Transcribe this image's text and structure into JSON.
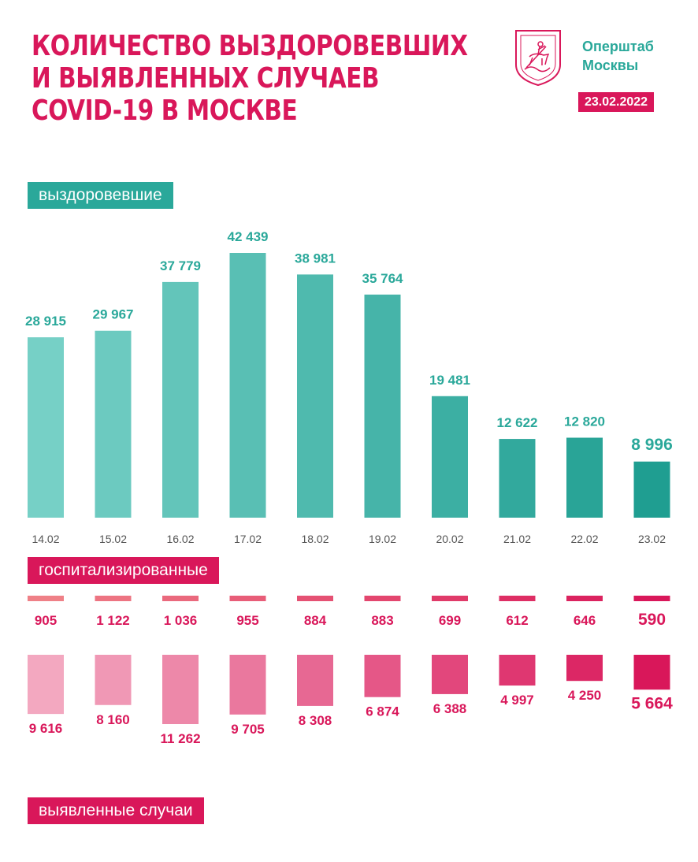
{
  "header": {
    "title_lines": [
      "КОЛИЧЕСТВО ВЫЗДОРОВЕВШИХ",
      "И ВЫЯВЛЕННЫХ СЛУЧАЕВ",
      "COVID-19 В МОСКВЕ"
    ],
    "org_lines": [
      "Оперштаб",
      "Москвы"
    ],
    "date": "23.02.2022",
    "emblem_icon": "moscow-coat-of-arms-icon"
  },
  "labels": {
    "recovered": "выздоровевшие",
    "hospitalized": "госпитализированные",
    "cases": "выявленные случаи"
  },
  "colors": {
    "accent_pink": "#d9175a",
    "accent_teal": "#2aa89a",
    "tick_text": "#555555"
  },
  "chart_data": [
    {
      "type": "bar",
      "name": "выздоровевшие",
      "categories": [
        "14.02",
        "15.02",
        "16.02",
        "17.02",
        "18.02",
        "19.02",
        "20.02",
        "21.02",
        "22.02",
        "23.02"
      ],
      "values": [
        28915,
        29967,
        37779,
        42439,
        38981,
        35764,
        19481,
        12622,
        12820,
        8996
      ],
      "value_labels": [
        "28 915",
        "29 967",
        "37 779",
        "42 439",
        "38 981",
        "35 764",
        "19 481",
        "12 622",
        "12 820",
        "8 996"
      ],
      "ylim": [
        0,
        42439
      ],
      "grid": false
    },
    {
      "type": "bar",
      "name": "госпитализированные",
      "categories": [
        "14.02",
        "15.02",
        "16.02",
        "17.02",
        "18.02",
        "19.02",
        "20.02",
        "21.02",
        "22.02",
        "23.02"
      ],
      "values": [
        905,
        1122,
        1036,
        955,
        884,
        883,
        699,
        612,
        646,
        590
      ],
      "value_labels": [
        "905",
        "1 122",
        "1 036",
        "955",
        "884",
        "883",
        "699",
        "612",
        "646",
        "590"
      ],
      "grid": false
    },
    {
      "type": "bar",
      "name": "выявленные случаи",
      "categories": [
        "14.02",
        "15.02",
        "16.02",
        "17.02",
        "18.02",
        "19.02",
        "20.02",
        "21.02",
        "22.02",
        "23.02"
      ],
      "values": [
        9616,
        8160,
        11262,
        9705,
        8308,
        6874,
        6388,
        4997,
        4250,
        5664
      ],
      "value_labels": [
        "9 616",
        "8 160",
        "11 262",
        "9 705",
        "8 308",
        "6 874",
        "6 388",
        "4 997",
        "4 250",
        "5 664"
      ],
      "grid": false
    }
  ]
}
